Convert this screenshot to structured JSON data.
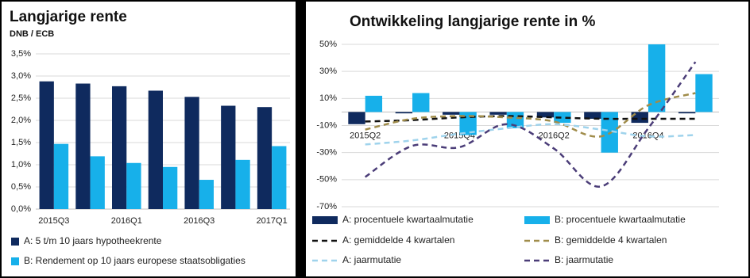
{
  "chart_data": [
    {
      "type": "bar",
      "title": "Langjarige rente",
      "subtitle": "DNB / ECB",
      "categories": [
        "2015Q3",
        null,
        "2016Q1",
        null,
        "2016Q3",
        null,
        "2017Q1"
      ],
      "series": [
        {
          "name": "A: 5 t/m 10 jaars hypotheekrente",
          "type": "bar",
          "color": "#0f2a5e",
          "values": [
            2.88,
            2.83,
            2.77,
            2.67,
            2.53,
            2.33,
            2.3
          ]
        },
        {
          "name": "B: Rendement op 10 jaars europese staatsobligaties",
          "type": "bar",
          "color": "#17b0ea",
          "values": [
            1.47,
            1.19,
            1.04,
            0.95,
            0.66,
            1.11,
            1.42
          ]
        }
      ],
      "ylim": [
        0,
        3.5
      ],
      "yticks": [
        {
          "value": 0,
          "label": "0,0%"
        },
        {
          "value": 0.5,
          "label": "0,5%"
        },
        {
          "value": 1,
          "label": "1,0%"
        },
        {
          "value": 1.5,
          "label": "1,5%"
        },
        {
          "value": 2,
          "label": "2,0%"
        },
        {
          "value": 2.5,
          "label": "2,5%"
        },
        {
          "value": 3,
          "label": "3,0%"
        },
        {
          "value": 3.5,
          "label": "3,5%"
        }
      ],
      "grid": true
    },
    {
      "type": "combo",
      "title": "Ontwikkeling langjarige rente in %",
      "categories": [
        "2015Q2",
        null,
        "2015Q4",
        null,
        "2016Q2",
        null,
        "2016Q4",
        null
      ],
      "series": [
        {
          "name": "A: procentuele kwartaalmutatie",
          "type": "bar",
          "color": "#0f2a5e",
          "values": [
            -9,
            -1,
            -2,
            -2,
            -4,
            -5,
            -8,
            -1
          ]
        },
        {
          "name": "B: procentuele kwartaalmutatie",
          "type": "bar",
          "color": "#17b0ea",
          "values": [
            12,
            14,
            -17,
            -12,
            -8,
            -30,
            50,
            28
          ]
        },
        {
          "name": "A: gemiddelde 4 kwartalen",
          "type": "line",
          "color": "#111111",
          "values": [
            -7,
            -6,
            -4,
            -3,
            -4,
            -5,
            -5,
            -5
          ]
        },
        {
          "name": "B: gemiddelde 4 kwartalen",
          "type": "line",
          "color": "#a08c4a",
          "values": [
            -13,
            -5,
            -3,
            -4,
            -7,
            -18,
            5,
            14
          ]
        },
        {
          "name": "A: jaarmutatie",
          "type": "line",
          "color": "#9fd3ec",
          "values": [
            -24,
            -21,
            -16,
            -12,
            -9,
            -13,
            -18,
            -17
          ]
        },
        {
          "name": "B: jaarmutatie",
          "type": "line",
          "color": "#4b3d78",
          "values": [
            -48,
            -25,
            -26,
            -9,
            -27,
            -55,
            -12,
            37
          ]
        }
      ],
      "ylim": [
        -70,
        50
      ],
      "yticks": [
        {
          "value": -70,
          "label": "-70%"
        },
        {
          "value": -50,
          "label": "-50%"
        },
        {
          "value": -30,
          "label": "-30%"
        },
        {
          "value": -10,
          "label": "-10%"
        },
        {
          "value": 10,
          "label": "10%"
        },
        {
          "value": 30,
          "label": "30%"
        },
        {
          "value": 50,
          "label": "50%"
        }
      ],
      "grid": true,
      "line_style": "dashed"
    }
  ]
}
